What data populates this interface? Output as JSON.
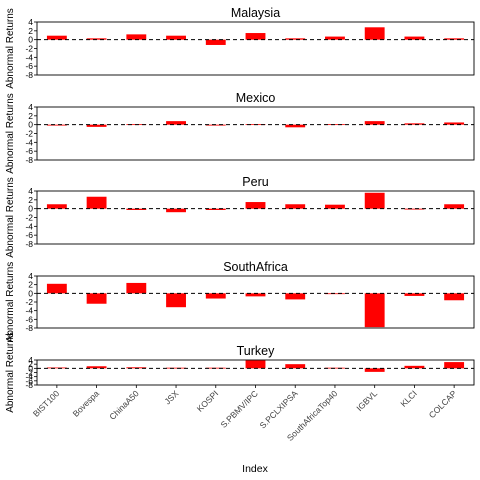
{
  "chart_data": {
    "type": "bar",
    "xlabel": "Index",
    "categories": [
      "BIST100",
      "Bovespa",
      "ChinaA50",
      "JSX",
      "KOSPI",
      "S.PBMV/IPC",
      "S.PCLXIPSA",
      "SouthAfricaTop40",
      "IGBVL",
      "KLCI",
      "COLCAP"
    ],
    "bar_color": "#ff0000",
    "panels": [
      {
        "title": "Malaysia",
        "ylabel": "Abnormal Returns",
        "ylim": [
          -8,
          4
        ],
        "yticks": [
          4,
          2,
          0,
          -2,
          -4,
          -6,
          -8
        ],
        "values": [
          0.9,
          0.3,
          1.2,
          0.9,
          -1.2,
          1.5,
          0.3,
          0.7,
          2.8,
          0.7,
          0.3
        ]
      },
      {
        "title": "Mexico",
        "ylabel": "Abnormal Returns",
        "ylim": [
          -8,
          4
        ],
        "yticks": [
          4,
          2,
          0,
          -2,
          -4,
          -6,
          -8
        ],
        "values": [
          -0.2,
          -0.5,
          0.1,
          0.8,
          -0.2,
          0.1,
          -0.6,
          0.1,
          0.8,
          0.3,
          0.5
        ]
      },
      {
        "title": "Peru",
        "ylabel": "Abnormal Returns",
        "ylim": [
          -8,
          4
        ],
        "yticks": [
          4,
          2,
          0,
          -2,
          -4,
          -6,
          -8
        ],
        "values": [
          1.0,
          2.7,
          -0.3,
          -0.8,
          -0.3,
          1.5,
          1.0,
          0.9,
          3.6,
          -0.2,
          1.0
        ]
      },
      {
        "title": "SouthAfrica",
        "ylabel": "Abnormal Returns",
        "ylim": [
          -8,
          4
        ],
        "yticks": [
          4,
          2,
          0,
          -2,
          -4,
          -6,
          -8
        ],
        "values": [
          2.2,
          -2.4,
          2.4,
          -3.2,
          -1.2,
          -0.7,
          -1.4,
          0.0,
          -7.8,
          -0.6,
          -1.6
        ]
      },
      {
        "title": "Turkey",
        "ylabel": "Abnormal Returns",
        "ylim": [
          -8,
          4
        ],
        "yticks": [
          4,
          2,
          0,
          -2,
          -4,
          -6,
          -8
        ],
        "values": [
          0.4,
          1.0,
          0.5,
          0.3,
          0.3,
          3.8,
          2.0,
          0.3,
          -1.7,
          1.2,
          3.0
        ]
      }
    ]
  }
}
